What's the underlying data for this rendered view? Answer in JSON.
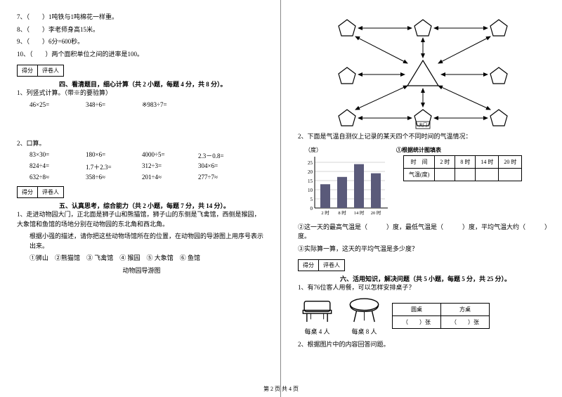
{
  "left": {
    "tf": [
      "7、（　　）1吨铁与1吨棉花一样重。",
      "8、（　　）李老师身高15米。",
      "9、（　　）6分=600秒。",
      "10、（　　）两个面积单位之间的进率是100。"
    ],
    "score_label1": "得分",
    "score_label2": "评卷人",
    "section4_title": "四、看清题目，细心计算（共 2 小题，每题 4 分，共 8 分）。",
    "q4_1": "1、列竖式计算。（带※的要验算）",
    "calc1": [
      "46×25=",
      "348÷6=",
      "※983÷7="
    ],
    "q4_2": "2、口算。",
    "calc2": [
      [
        "83×30=",
        "180×6=",
        "4000÷5=",
        "2.3－0.8="
      ],
      [
        "824÷4=",
        "1.7＋2.3=",
        "312÷3=",
        "304×6="
      ],
      [
        "632÷8≈",
        "358÷6≈",
        "201÷4≈",
        "277÷7≈"
      ]
    ],
    "section5_title": "五、认真思考，综合能力（共 2 小题，每题 7 分，共 14 分）。",
    "q5_1a": "1、走进动物园大门，正北面是狮子山和熊猫馆，狮子山的东侧是飞禽馆，西侧是猴园，大象馆和鱼馆的场地分别在动物园的东北角和西北角。",
    "q5_1b": "根据小强的描述，请你把这些动物场馆所在的位置，在动物园的导游图上用序号表示出来。",
    "legend": "①狮山　②熊猫馆　③ 飞禽馆　④ 猴园　⑤ 大象馆　⑥ 鱼馆",
    "map_title": "动物园导游图"
  },
  "right": {
    "q2": "2、下面是气温自测仪上记录的某天四个不同时间的气温情况：",
    "chart_ylabel": "（度）",
    "chart_title": "①根据统计图填表",
    "y_ticks": [
      "25",
      "20",
      "15",
      "10",
      "5",
      "0"
    ],
    "x_ticks": [
      "2 时",
      "8 时",
      "14 时",
      "20 时"
    ],
    "temp_headers": [
      "时　间",
      "2 时",
      "8 时",
      "14 时",
      "20 时"
    ],
    "temp_row": "气温(度)",
    "bars": [
      13,
      17,
      24,
      19
    ],
    "bar_color": "#5a5a7a",
    "q2b": "②这一天的最高气温是（　　　）度，最低气温是（　　　）度，平均气温大约（　　　）度。",
    "q2c": "③实际算一算，这天的平均气温是多少度？",
    "score_label1": "得分",
    "score_label2": "评卷人",
    "section6_title": "六、活用知识，解决问题（共 5 小题，每题 5 分，共 25 分）。",
    "q6_1": "1、有76位客人用餐，可以怎样安排桌子？",
    "desk_sq": "每桌 4 人",
    "desk_rd": "每桌 8 人",
    "desk_headers": [
      "圆桌",
      "方桌"
    ],
    "desk_cells": [
      "（　　）张",
      "（　　）张"
    ],
    "q6_2": "2、根据图片中的内容回答问题。"
  },
  "footer": "第 2 页 共 4 页"
}
